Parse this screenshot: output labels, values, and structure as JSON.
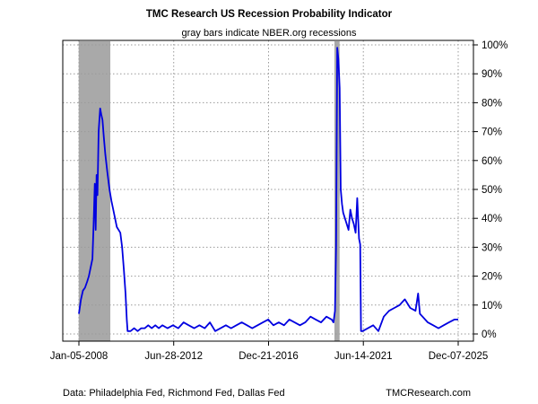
{
  "chart_data": {
    "type": "line",
    "title": "TMC Research US Recession Probability Indicator",
    "subtitle": "gray bars indicate NBER.org recessions",
    "source_note": "Data: Philadelphia Fed, Richmond Fed, Dallas Fed",
    "brand_note": "TMCResearch.com",
    "x_tick_labels": [
      "Jan-05-2008",
      "Jun-28-2012",
      "Dec-21-2016",
      "Jun-14-2021",
      "Dec-07-2025"
    ],
    "y_tick_labels": [
      "0%",
      "10%",
      "20%",
      "30%",
      "40%",
      "50%",
      "60%",
      "70%",
      "80%",
      "90%",
      "100%"
    ],
    "ylim": [
      0,
      100
    ],
    "y_axis_position": "right",
    "grid": true,
    "recessions": [
      {
        "start": "2008-01-01",
        "end": "2009-06-30"
      },
      {
        "start": "2020-02-01",
        "end": "2020-04-30"
      }
    ],
    "line_color": "#0000e0",
    "recession_color": "#a9a9a9",
    "series": [
      {
        "x": [
          "2008-01-05",
          "2008-02-10",
          "2008-03-15",
          "2008-04-20",
          "2008-05-25",
          "2008-06-25",
          "2008-07-25",
          "2008-08-25",
          "2008-09-15",
          "2008-10-05",
          "2008-10-20",
          "2008-11-05",
          "2008-11-20",
          "2008-12-10",
          "2009-01-05",
          "2009-01-25",
          "2009-02-15",
          "2009-03-10",
          "2009-04-05",
          "2009-05-10",
          "2009-06-15",
          "2009-07-20",
          "2009-08-20",
          "2009-09-20",
          "2009-10-20",
          "2009-11-20",
          "2009-12-20",
          "2010-01-20",
          "2010-02-20",
          "2010-03-20",
          "2010-04-10",
          "2010-04-25",
          "2010-05-15",
          "2010-06-15",
          "2010-08-15",
          "2010-10-15",
          "2010-12-15",
          "2011-02-15",
          "2011-04-15",
          "2011-06-15",
          "2011-08-15",
          "2011-10-15",
          "2011-12-15",
          "2012-03-15",
          "2012-06-15",
          "2012-09-15",
          "2012-12-15",
          "2013-03-15",
          "2013-06-15",
          "2013-09-15",
          "2013-12-15",
          "2014-03-15",
          "2014-06-15",
          "2014-09-15",
          "2014-12-15",
          "2015-03-15",
          "2015-06-15",
          "2015-09-15",
          "2015-12-15",
          "2016-03-15",
          "2016-06-15",
          "2016-09-15",
          "2016-12-15",
          "2017-03-15",
          "2017-06-15",
          "2017-09-15",
          "2017-12-15",
          "2018-03-15",
          "2018-06-15",
          "2018-09-15",
          "2018-12-15",
          "2019-03-15",
          "2019-06-15",
          "2019-09-15",
          "2019-12-15",
          "2020-01-15",
          "2020-02-10",
          "2020-03-01",
          "2020-03-20",
          "2020-04-10",
          "2020-05-01",
          "2020-05-20",
          "2020-06-10",
          "2020-07-01",
          "2020-08-01",
          "2020-09-01",
          "2020-10-01",
          "2020-11-01",
          "2020-12-01",
          "2021-01-01",
          "2021-02-01",
          "2021-03-01",
          "2021-04-01",
          "2021-04-20",
          "2021-05-05",
          "2021-06-01",
          "2021-09-01",
          "2021-12-01",
          "2022-03-01",
          "2022-06-01",
          "2022-09-01",
          "2022-12-01",
          "2023-03-01",
          "2023-06-01",
          "2023-09-01",
          "2023-12-01",
          "2024-01-15",
          "2024-02-15",
          "2024-04-01",
          "2024-07-01",
          "2024-10-01",
          "2025-01-01",
          "2025-04-01",
          "2025-07-01",
          "2025-10-01",
          "2025-12-07"
        ],
        "y": [
          7,
          12,
          15,
          16,
          18,
          20,
          23,
          26,
          38,
          52,
          36,
          55,
          48,
          70,
          78,
          76,
          74,
          68,
          62,
          56,
          50,
          46,
          43,
          40,
          37,
          36,
          35,
          30,
          22,
          14,
          5,
          1,
          1,
          1,
          2,
          1,
          2,
          2,
          3,
          2,
          3,
          2,
          3,
          2,
          3,
          2,
          4,
          3,
          2,
          3,
          2,
          4,
          1,
          2,
          3,
          2,
          3,
          4,
          3,
          2,
          3,
          4,
          5,
          3,
          4,
          3,
          5,
          4,
          3,
          4,
          6,
          5,
          4,
          6,
          5,
          4,
          8,
          30,
          99,
          95,
          85,
          50,
          45,
          42,
          40,
          38,
          36,
          43,
          40,
          38,
          35,
          47,
          33,
          31,
          1,
          1,
          2,
          3,
          1,
          6,
          8,
          9,
          10,
          12,
          9,
          8,
          14,
          7,
          6,
          4,
          3,
          2,
          3,
          4,
          5,
          5
        ]
      }
    ]
  }
}
